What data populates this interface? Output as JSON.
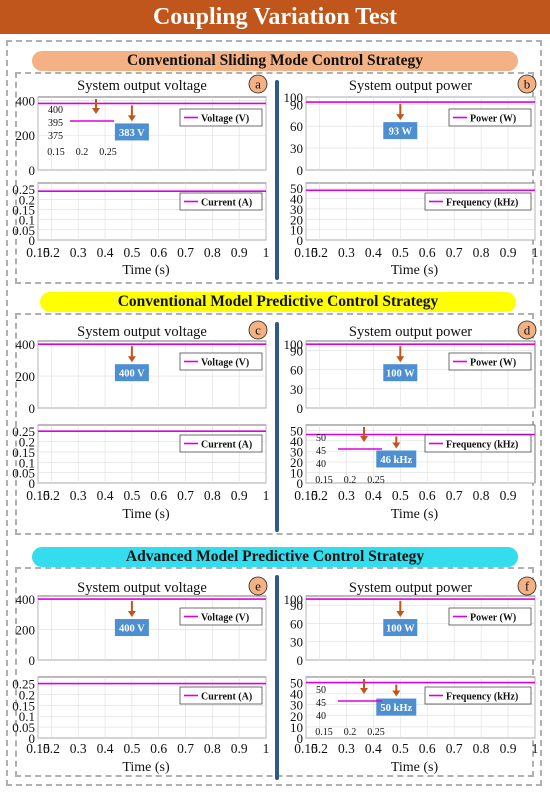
{
  "title": "Coupling Variation Test",
  "colors": {
    "title_bg": "#c0561b",
    "line": "#dd00dd",
    "callout": "#4d8fd1",
    "arrow": "#c0561b",
    "divider": "#2e5a86"
  },
  "sections": [
    {
      "heading": "Conventional Sliding Mode Control Strategy",
      "heading_bg": "#f4b183"
    },
    {
      "heading": "Conventional Model Predictive Control Strategy",
      "heading_bg": "#ffff00"
    },
    {
      "heading": "Advanced Model Predictive Control Strategy",
      "heading_bg": "#33ddee"
    }
  ],
  "panel_titles": {
    "left": "System output voltage",
    "right": "System output power"
  },
  "x_label": "Time (s)",
  "chart_data": [
    {
      "id": "a",
      "type": "line",
      "x_ticks": [
        "0.15",
        "0.2",
        "0.3",
        "0.4",
        "0.5",
        "0.6",
        "0.7",
        "0.8",
        "0.9",
        "1"
      ],
      "xlim": [
        0.15,
        1
      ],
      "xlabel": "Time (s)",
      "top": {
        "series": [
          {
            "name": "Voltage (V)",
            "x": [
              0.15,
              1
            ],
            "y": [
              383,
              383
            ]
          }
        ],
        "ylim": [
          0,
          420
        ],
        "y_ticks": [
          "0",
          "200",
          "400"
        ],
        "callout": "383 V",
        "inset": {
          "y_ticks": [
            "400",
            "395",
            "375"
          ],
          "x_ticks": [
            "0.15",
            "0.2",
            "0.25"
          ]
        }
      },
      "bottom": {
        "series": [
          {
            "name": "Current (A)",
            "x": [
              0.15,
              1
            ],
            "y": [
              0.24,
              0.24
            ]
          }
        ],
        "ylim": [
          0,
          0.28
        ],
        "y_ticks": [
          "0",
          "0.05",
          "0.1",
          "0.15",
          "0.2",
          "0.25"
        ]
      }
    },
    {
      "id": "b",
      "type": "line",
      "x_ticks": [
        "0.15",
        "0.2",
        "0.3",
        "0.4",
        "0.5",
        "0.6",
        "0.7",
        "0.8",
        "0.9",
        "1"
      ],
      "xlim": [
        0.15,
        1
      ],
      "xlabel": "Time (s)",
      "top": {
        "series": [
          {
            "name": "Power (W)",
            "x": [
              0.15,
              1
            ],
            "y": [
              93,
              93
            ]
          }
        ],
        "ylim": [
          0,
          100
        ],
        "y_ticks": [
          "0",
          "30",
          "60",
          "90",
          "100"
        ],
        "callout": "93 W"
      },
      "bottom": {
        "series": [
          {
            "name": "Frequency (kHz)",
            "x": [
              0.15,
              1
            ],
            "y": [
              48,
              48
            ]
          }
        ],
        "ylim": [
          0,
          55
        ],
        "y_ticks": [
          "0",
          "10",
          "20",
          "30",
          "40",
          "50"
        ]
      }
    },
    {
      "id": "c",
      "type": "line",
      "x_ticks": [
        "0.15",
        "0.2",
        "0.3",
        "0.4",
        "0.5",
        "0.6",
        "0.7",
        "0.8",
        "0.9",
        "1"
      ],
      "xlim": [
        0.15,
        1
      ],
      "xlabel": "Time (s)",
      "top": {
        "series": [
          {
            "name": "Voltage (V)",
            "x": [
              0.15,
              1
            ],
            "y": [
              400,
              400
            ]
          }
        ],
        "ylim": [
          0,
          420
        ],
        "y_ticks": [
          "0",
          "200",
          "400"
        ],
        "callout": "400 V"
      },
      "bottom": {
        "series": [
          {
            "name": "Current (A)",
            "x": [
              0.15,
              1
            ],
            "y": [
              0.25,
              0.25
            ]
          }
        ],
        "ylim": [
          0,
          0.28
        ],
        "y_ticks": [
          "0",
          "0.05",
          "0.1",
          "0.15",
          "0.2",
          "0.25"
        ]
      }
    },
    {
      "id": "d",
      "type": "line",
      "x_ticks": [
        "0.15",
        "0.2",
        "0.3",
        "0.4",
        "0.5",
        "0.6",
        "0.7",
        "0.8",
        "0.9"
      ],
      "xlim": [
        0.15,
        1
      ],
      "xlabel": "Time (s)",
      "top": {
        "series": [
          {
            "name": "Power (W)",
            "x": [
              0.15,
              1
            ],
            "y": [
              100,
              100
            ]
          }
        ],
        "ylim": [
          0,
          105
        ],
        "y_ticks": [
          "0",
          "30",
          "60",
          "90",
          "100"
        ],
        "callout": "100 W"
      },
      "bottom": {
        "series": [
          {
            "name": "Frequency (kHz)",
            "x": [
              0.15,
              1
            ],
            "y": [
              46,
              46
            ]
          }
        ],
        "ylim": [
          0,
          55
        ],
        "y_ticks": [
          "0",
          "10",
          "20",
          "30",
          "40",
          "50"
        ],
        "callout": "46 kHz",
        "inset": {
          "y_ticks": [
            "50",
            "45",
            "40"
          ],
          "x_ticks": [
            "0.15",
            "0.2",
            "0.25"
          ]
        }
      }
    },
    {
      "id": "e",
      "type": "line",
      "x_ticks": [
        "0.15",
        "0.2",
        "0.3",
        "0.4",
        "0.5",
        "0.6",
        "0.7",
        "0.8",
        "0.9",
        "1"
      ],
      "xlim": [
        0.15,
        1
      ],
      "xlabel": "Time (s)",
      "top": {
        "series": [
          {
            "name": "Voltage (V)",
            "x": [
              0.15,
              1
            ],
            "y": [
              400,
              400
            ]
          }
        ],
        "ylim": [
          0,
          420
        ],
        "y_ticks": [
          "0",
          "200",
          "400"
        ],
        "callout": "400 V"
      },
      "bottom": {
        "series": [
          {
            "name": "Current (A)",
            "x": [
              0.15,
              1
            ],
            "y": [
              0.25,
              0.25
            ]
          }
        ],
        "ylim": [
          0,
          0.28
        ],
        "y_ticks": [
          "0",
          "0.05",
          "0.1",
          "0.15",
          "0.2",
          "0.25"
        ]
      }
    },
    {
      "id": "f",
      "type": "line",
      "x_ticks": [
        "0.15",
        "0.2",
        "0.3",
        "0.4",
        "0.5",
        "0.6",
        "0.7",
        "0.8",
        "0.9",
        "1"
      ],
      "xlim": [
        0.15,
        1
      ],
      "xlabel": "Time (s)",
      "top": {
        "series": [
          {
            "name": "Power (W)",
            "x": [
              0.15,
              1
            ],
            "y": [
              100,
              100
            ]
          }
        ],
        "ylim": [
          0,
          105
        ],
        "y_ticks": [
          "0",
          "30",
          "60",
          "90",
          "100"
        ],
        "callout": "100 W"
      },
      "bottom": {
        "series": [
          {
            "name": "Frequency (kHz)",
            "x": [
              0.15,
              1
            ],
            "y": [
              50,
              50
            ]
          }
        ],
        "ylim": [
          0,
          55
        ],
        "y_ticks": [
          "0",
          "10",
          "20",
          "30",
          "40",
          "50"
        ],
        "callout": "50 kHz",
        "inset": {
          "y_ticks": [
            "50",
            "45",
            "40"
          ],
          "x_ticks": [
            "0.15",
            "0.2",
            "0.25"
          ]
        }
      }
    }
  ]
}
